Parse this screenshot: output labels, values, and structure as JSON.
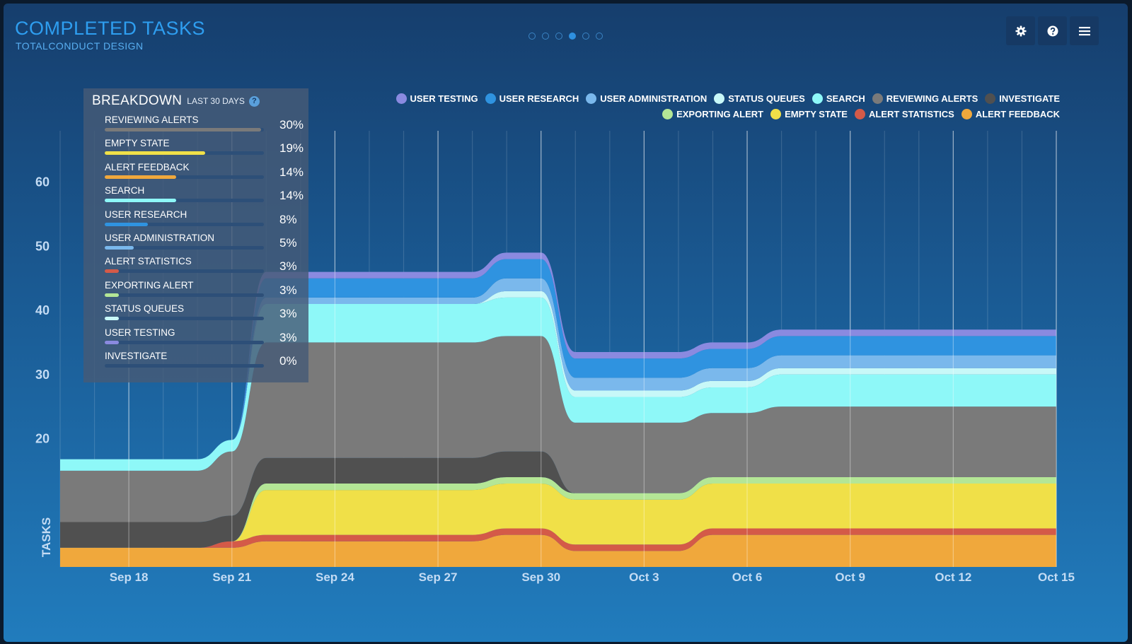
{
  "header": {
    "title": "COMPLETED TASKS",
    "subtitle": "TOTALCONDUCT DESIGN"
  },
  "pager": {
    "pages": 6,
    "active": 3
  },
  "toolbar": {
    "settings_icon": "gear-icon",
    "help_icon": "help-icon",
    "menu_icon": "menu-icon"
  },
  "breakdown": {
    "title": "BREAKDOWN",
    "range_label": "LAST 30 DAYS",
    "help_glyph": "?",
    "items": [
      {
        "label": "REVIEWING ALERTS",
        "percent": "30%",
        "fraction": 0.98,
        "color": "#7a7a7a"
      },
      {
        "label": "EMPTY STATE",
        "percent": "19%",
        "fraction": 0.63,
        "color": "#f0e048"
      },
      {
        "label": "ALERT FEEDBACK",
        "percent": "14%",
        "fraction": 0.45,
        "color": "#f0a83c"
      },
      {
        "label": "SEARCH",
        "percent": "14%",
        "fraction": 0.45,
        "color": "#8ef8f8"
      },
      {
        "label": "USER RESEARCH",
        "percent": "8%",
        "fraction": 0.27,
        "color": "#2f93e0"
      },
      {
        "label": "USER ADMINISTRATION",
        "percent": "5%",
        "fraction": 0.18,
        "color": "#7ab8ec"
      },
      {
        "label": "ALERT STATISTICS",
        "percent": "3%",
        "fraction": 0.09,
        "color": "#d45a48"
      },
      {
        "label": "EXPORTING ALERT",
        "percent": "3%",
        "fraction": 0.09,
        "color": "#b4e696"
      },
      {
        "label": "STATUS QUEUES",
        "percent": "3%",
        "fraction": 0.09,
        "color": "#c8f8f8"
      },
      {
        "label": "USER TESTING",
        "percent": "3%",
        "fraction": 0.09,
        "color": "#8a8ae0"
      },
      {
        "label": "INVESTIGATE",
        "percent": "0%",
        "fraction": 0.0,
        "color": "#505050"
      }
    ]
  },
  "chart_data": {
    "type": "area",
    "stacked": true,
    "ylabel": "TASKS",
    "y_ticks": [
      20,
      30,
      40,
      50,
      60
    ],
    "ylim": [
      0,
      68
    ],
    "x_ticks": [
      "Sep 18",
      "Sep 21",
      "Sep 24",
      "Sep 27",
      "Sep 30",
      "Oct 3",
      "Oct 6",
      "Oct 9",
      "Oct 12",
      "Oct 15"
    ],
    "x": [
      "Sep 16",
      "Sep 20",
      "Sep 21",
      "Sep 22",
      "Sep 28",
      "Sep 29",
      "Sep 30",
      "Oct 1",
      "Oct 4",
      "Oct 5",
      "Oct 6",
      "Oct 7",
      "Oct 15"
    ],
    "series": [
      {
        "name": "ALERT FEEDBACK",
        "color": "#f0a83c",
        "values": [
          3,
          3,
          3,
          4,
          4,
          5,
          5,
          2.5,
          2.5,
          5,
          5,
          5,
          5
        ]
      },
      {
        "name": "ALERT STATISTICS",
        "color": "#d45a48",
        "values": [
          0,
          0,
          1,
          1,
          1,
          1,
          1,
          1,
          1,
          1,
          1,
          1,
          1
        ]
      },
      {
        "name": "EMPTY STATE",
        "color": "#f0e048",
        "values": [
          0,
          0,
          0,
          7,
          7,
          7,
          7,
          7,
          7,
          7,
          7,
          7,
          7
        ]
      },
      {
        "name": "EXPORTING ALERT",
        "color": "#b4e696",
        "values": [
          0,
          0,
          0,
          1,
          1,
          1,
          1,
          1,
          1,
          1,
          1,
          1,
          1
        ]
      },
      {
        "name": "INVESTIGATE",
        "color": "#505050",
        "values": [
          4,
          4,
          4,
          4,
          4,
          4,
          4,
          0,
          0,
          0,
          0,
          0,
          0
        ]
      },
      {
        "name": "REVIEWING ALERTS",
        "color": "#7a7a7a",
        "values": [
          8,
          8,
          10,
          18,
          18,
          18,
          18,
          11,
          11,
          10,
          10,
          11,
          11
        ]
      },
      {
        "name": "SEARCH",
        "color": "#8ef8f8",
        "values": [
          1.8,
          1.8,
          1.8,
          6,
          6,
          6,
          6,
          4,
          4,
          4,
          4,
          5,
          5
        ]
      },
      {
        "name": "STATUS QUEUES",
        "color": "#c8f8f8",
        "values": [
          0,
          0,
          0,
          0,
          0,
          1,
          1,
          1,
          1,
          1,
          1,
          1,
          1
        ]
      },
      {
        "name": "USER ADMINISTRATION",
        "color": "#7ab8ec",
        "values": [
          0,
          0,
          0,
          1,
          1,
          2,
          2,
          2,
          2,
          2,
          2,
          2,
          2
        ]
      },
      {
        "name": "USER RESEARCH",
        "color": "#2f93e0",
        "values": [
          0,
          0,
          0,
          3,
          3,
          3,
          3,
          3,
          3,
          3,
          3,
          3,
          3
        ]
      },
      {
        "name": "USER TESTING",
        "color": "#8a8ae0",
        "values": [
          0,
          0,
          0,
          1,
          1,
          1,
          1,
          1,
          1,
          1,
          1,
          1,
          1
        ]
      }
    ],
    "legend": {
      "placement": "top-right",
      "rows": [
        [
          {
            "label": "USER TESTING",
            "color": "#8a8ae0"
          },
          {
            "label": "USER RESEARCH",
            "color": "#2f93e0"
          },
          {
            "label": "USER ADMINISTRATION",
            "color": "#7ab8ec"
          },
          {
            "label": "STATUS QUEUES",
            "color": "#c8f8f8"
          },
          {
            "label": "SEARCH",
            "color": "#8ef8f8"
          },
          {
            "label": "REVIEWING ALERTS",
            "color": "#7a7a7a"
          },
          {
            "label": "INVESTIGATE",
            "color": "#505050"
          }
        ],
        [
          {
            "label": "EXPORTING ALERT",
            "color": "#b4e696"
          },
          {
            "label": "EMPTY STATE",
            "color": "#f0e048"
          },
          {
            "label": "ALERT STATISTICS",
            "color": "#d45a48"
          },
          {
            "label": "ALERT FEEDBACK",
            "color": "#f0a83c"
          }
        ]
      ]
    },
    "grid": true
  }
}
